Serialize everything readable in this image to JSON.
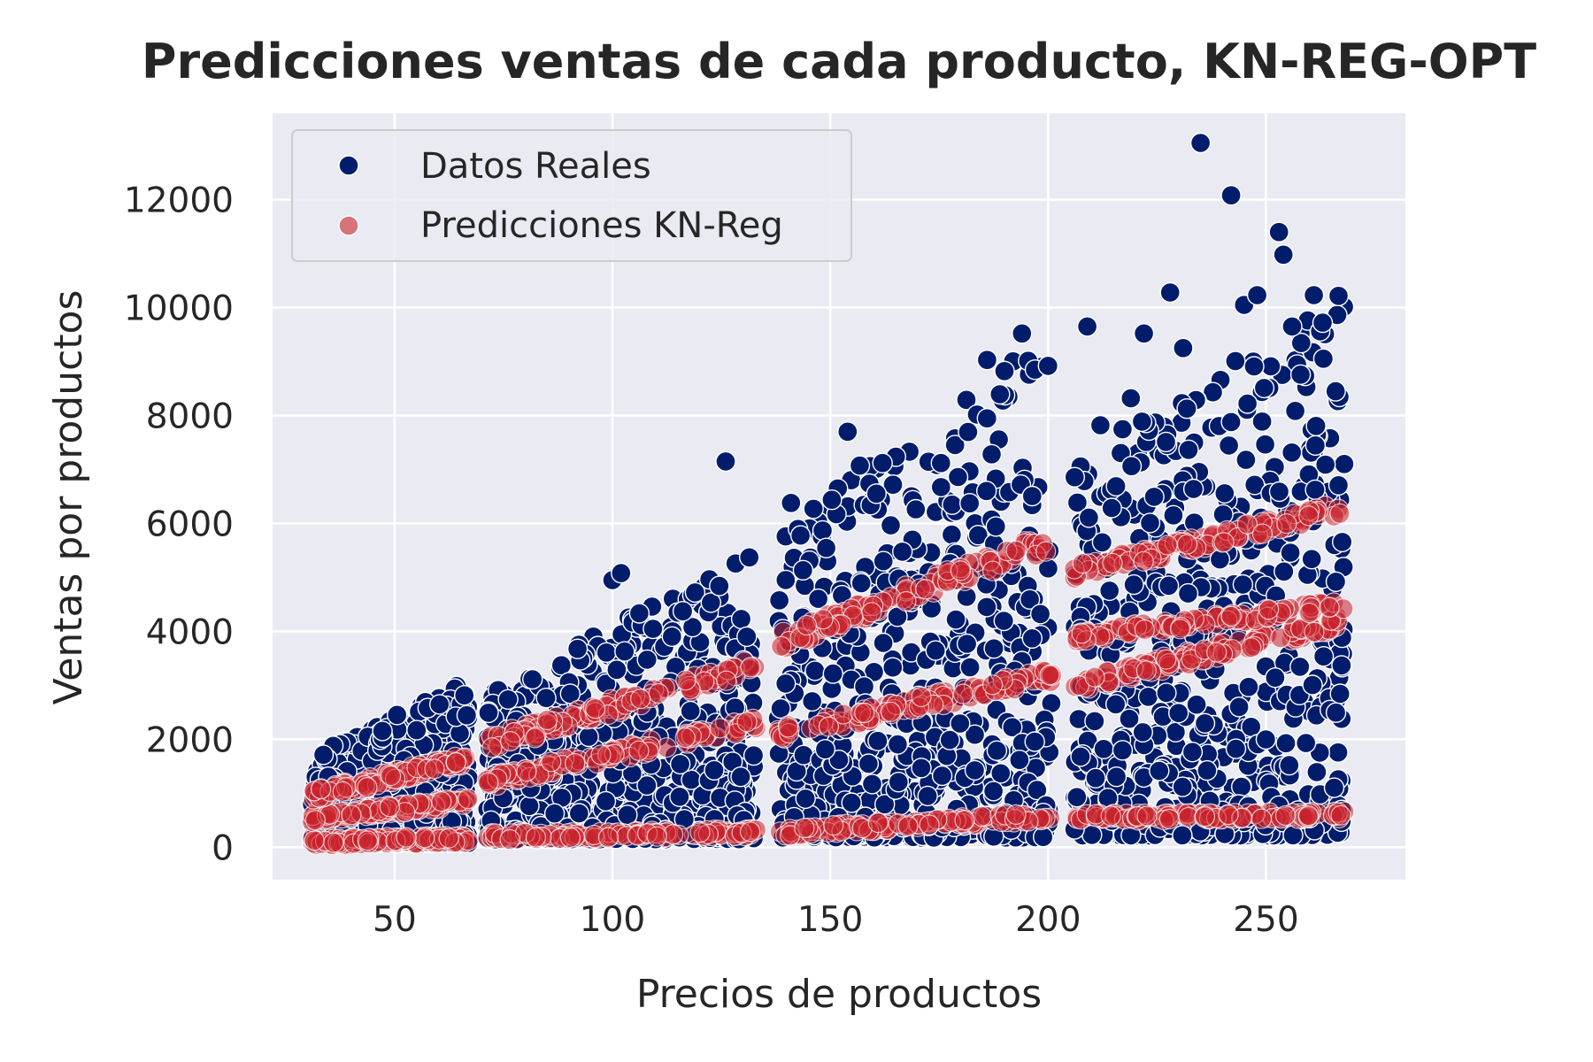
{
  "chart_data": {
    "type": "scatter",
    "title": "Predicciones ventas de cada producto, KN-REG-OPT",
    "xlabel": "Precios de productos",
    "ylabel": "Ventas por productos",
    "xlim": [
      22,
      282
    ],
    "ylim": [
      -600,
      13600
    ],
    "xticks": [
      50,
      100,
      150,
      200,
      250
    ],
    "yticks": [
      0,
      2000,
      4000,
      6000,
      8000,
      10000,
      12000
    ],
    "grid": true,
    "legend_position": "top-left",
    "colors": {
      "background": "#eaeaf2",
      "grid": "#ffffff",
      "real": "#001c6b",
      "prediction": "#c8232c"
    },
    "series": [
      {
        "name": "Datos Reales",
        "color": "#001c6b",
        "segments": [
          {
            "x": [
              31,
              67
            ],
            "ymin": 80,
            "ymax": [
              1700,
              3100
            ]
          },
          {
            "x": [
              71,
              133
            ],
            "ymin": 150,
            "ymax": [
              2800,
              5600
            ]
          },
          {
            "x": [
              138,
              201
            ],
            "ymin": 180,
            "ymax": [
              6000,
              9600
            ]
          },
          {
            "x": [
              206,
              268
            ],
            "ymin": 220,
            "ymax": [
              7200,
              10300
            ]
          }
        ],
        "outliers": [
          {
            "x": 126,
            "y": 7150
          },
          {
            "x": 100,
            "y": 4950
          },
          {
            "x": 102,
            "y": 5080
          },
          {
            "x": 141,
            "y": 6380
          },
          {
            "x": 154,
            "y": 7700
          },
          {
            "x": 162,
            "y": 7120
          },
          {
            "x": 186,
            "y": 9030
          },
          {
            "x": 194,
            "y": 9520
          },
          {
            "x": 197,
            "y": 8850
          },
          {
            "x": 200,
            "y": 8920
          },
          {
            "x": 209,
            "y": 9650
          },
          {
            "x": 212,
            "y": 7820
          },
          {
            "x": 219,
            "y": 8320
          },
          {
            "x": 222,
            "y": 9520
          },
          {
            "x": 228,
            "y": 10280
          },
          {
            "x": 231,
            "y": 9250
          },
          {
            "x": 235,
            "y": 13050
          },
          {
            "x": 242,
            "y": 12080
          },
          {
            "x": 245,
            "y": 10050
          },
          {
            "x": 248,
            "y": 10230
          },
          {
            "x": 253,
            "y": 11400
          },
          {
            "x": 254,
            "y": 10980
          },
          {
            "x": 256,
            "y": 9650
          },
          {
            "x": 261,
            "y": 10230
          },
          {
            "x": 263,
            "y": 9720
          },
          {
            "x": 266,
            "y": 8450
          }
        ]
      },
      {
        "name": "Predicciones KN-Reg",
        "color": "#c8232c",
        "bands": [
          {
            "x": [
              31,
              67
            ],
            "y": [
              100,
              150
            ]
          },
          {
            "x": [
              31,
              67
            ],
            "y": [
              550,
              850
            ]
          },
          {
            "x": [
              31,
              67
            ],
            "y": [
              950,
              1650
            ]
          },
          {
            "x": [
              71,
              133
            ],
            "y": [
              200,
              280
            ]
          },
          {
            "x": [
              71,
              133
            ],
            "y": [
              1200,
              2300
            ]
          },
          {
            "x": [
              71,
              133
            ],
            "y": [
              1900,
              3400
            ]
          },
          {
            "x": [
              138,
              201
            ],
            "y": [
              280,
              580
            ]
          },
          {
            "x": [
              138,
              201
            ],
            "y": [
              2100,
              3200
            ]
          },
          {
            "x": [
              138,
              201
            ],
            "y": [
              3800,
              5700
            ]
          },
          {
            "x": [
              206,
              268
            ],
            "y": [
              550,
              600
            ]
          },
          {
            "x": [
              206,
              268
            ],
            "y": [
              3000,
              4200
            ]
          },
          {
            "x": [
              206,
              268
            ],
            "y": [
              3900,
              4500
            ]
          },
          {
            "x": [
              206,
              268
            ],
            "y": [
              5100,
              6300
            ]
          }
        ]
      }
    ]
  }
}
